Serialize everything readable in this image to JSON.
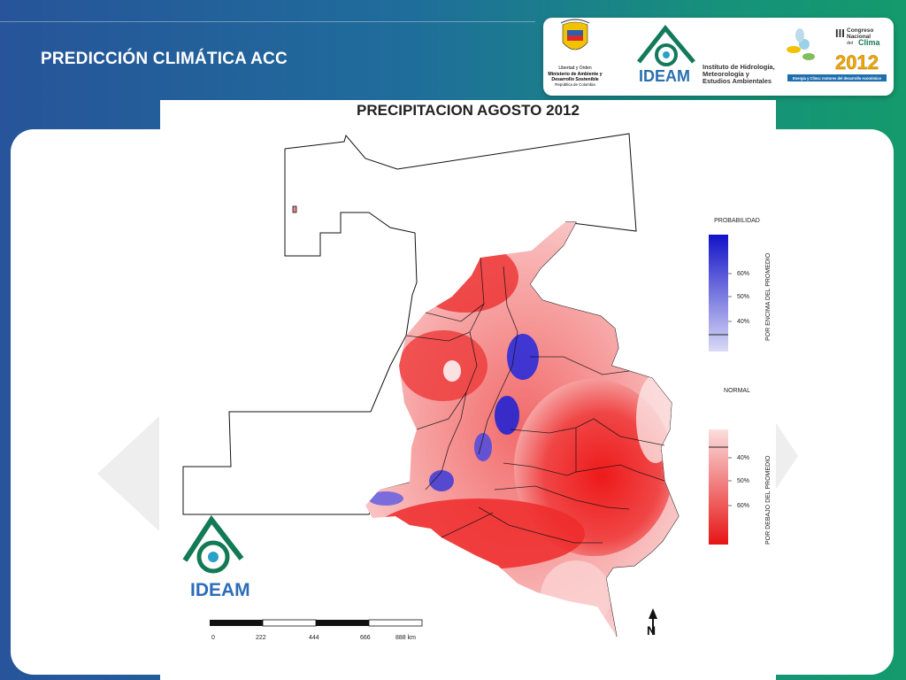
{
  "slide": {
    "title": "PREDICCIÓN CLIMÁTICA ACC"
  },
  "logos": {
    "ministry": {
      "line1": "Libertad y Orden",
      "line2": "Ministerio de Ambiente y",
      "line3": "Desarrollo Sostenible",
      "line4": "República de Colombia"
    },
    "ideam": {
      "name": "IDEAM",
      "text1": "Instituto de Hidrología,",
      "text2": "Meteorología y",
      "text3": "Estudios Ambientales"
    },
    "congress": {
      "roman": "III",
      "line1": "Congreso",
      "line2": "Nacional",
      "line3": "del",
      "line4": "Clima",
      "year": "2012",
      "tagline": "Energía y Clima: motores del desarrollo económico"
    }
  },
  "map": {
    "title": "PRECIPITACION  AGOSTO 2012",
    "logo_text": "IDEAM",
    "north_label": "N",
    "scale_labels": [
      "0",
      "222",
      "444",
      "666",
      "888 km"
    ],
    "legend": {
      "above": {
        "heading": "PROBABILIDAD",
        "axis_label": "POR ENCIMA DEL PROMEDIO",
        "ticks": [
          "60%",
          "50%",
          "40%"
        ],
        "color": "#1f1fd6"
      },
      "normal_heading": "NORMAL",
      "below": {
        "axis_label": "POR DEBAJO DEL PROMEDIO",
        "ticks": [
          "40%",
          "50%",
          "60%"
        ],
        "color": "#e81515"
      }
    }
  },
  "colors": {
    "background_left": "#27549a",
    "background_right": "#149a6c",
    "dry": "#e81515",
    "wet": "#1f1fd6"
  }
}
